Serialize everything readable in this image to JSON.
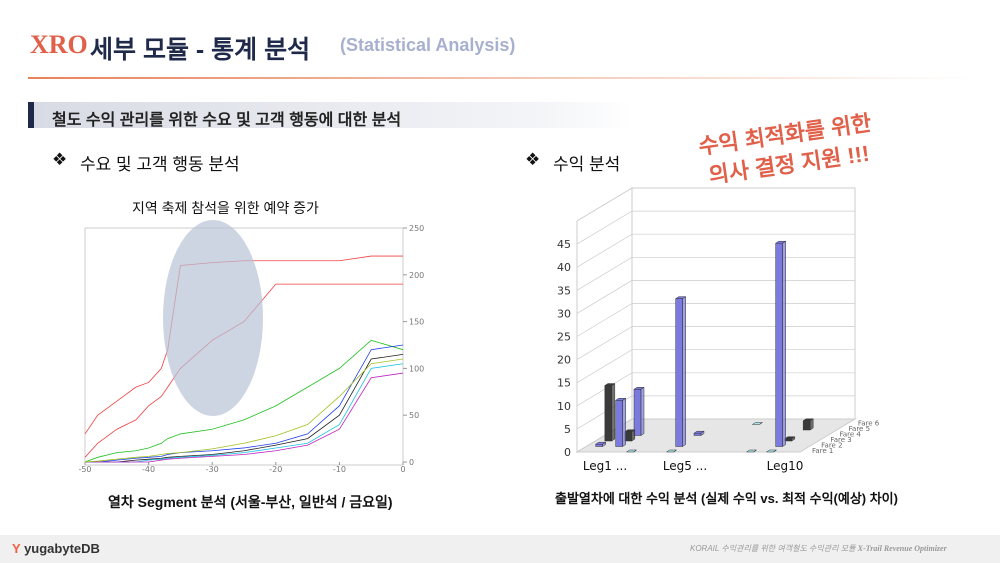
{
  "header": {
    "brand": "XRO",
    "title": "세부 모듈 - 통계 분석",
    "subtitle": "(Statistical Analysis)"
  },
  "section_title": "철도 수익 관리를 위한 수요 및 고객 행동에 대한 분석",
  "left": {
    "heading": "수요 및 고객 행동 분석",
    "annotation": "지역 축제 참석을 위한 예약 증가",
    "caption": "열차 Segment 분석 (서울-부산, 일반석 / 금요일)",
    "chart": {
      "type": "line",
      "xlim": [
        -50,
        0
      ],
      "ylim": [
        0,
        250
      ],
      "xticks": [
        -50,
        -40,
        -30,
        -20,
        -10,
        0
      ],
      "yticks": [
        0,
        50,
        100,
        150,
        200,
        250
      ],
      "x": [
        -50,
        -48,
        -45,
        -42,
        -40,
        -38,
        -37,
        -35,
        -30,
        -25,
        -20,
        -15,
        -10,
        -5,
        0
      ],
      "series": [
        {
          "color": "#f04040",
          "values": [
            30,
            50,
            65,
            80,
            85,
            100,
            120,
            210,
            213,
            215,
            215,
            215,
            215,
            220,
            220
          ]
        },
        {
          "color": "#f04040",
          "values": [
            5,
            20,
            35,
            45,
            60,
            70,
            80,
            100,
            130,
            150,
            190,
            190,
            190,
            190,
            190
          ]
        },
        {
          "color": "#20c020",
          "values": [
            0,
            5,
            10,
            12,
            15,
            20,
            25,
            30,
            35,
            45,
            60,
            80,
            100,
            130,
            120
          ]
        },
        {
          "color": "#2040f0",
          "values": [
            0,
            0,
            2,
            4,
            5,
            6,
            8,
            10,
            12,
            15,
            20,
            30,
            60,
            120,
            125
          ]
        },
        {
          "color": "#202020",
          "values": [
            0,
            0,
            0,
            2,
            3,
            4,
            5,
            6,
            8,
            12,
            18,
            25,
            50,
            110,
            115
          ]
        },
        {
          "color": "#20c0e0",
          "values": [
            0,
            0,
            0,
            0,
            2,
            3,
            4,
            5,
            7,
            10,
            15,
            20,
            40,
            100,
            105
          ]
        },
        {
          "color": "#c020c0",
          "values": [
            0,
            0,
            0,
            0,
            0,
            2,
            3,
            4,
            6,
            8,
            12,
            18,
            35,
            90,
            95
          ]
        },
        {
          "color": "#a0c020",
          "values": [
            0,
            1,
            3,
            5,
            6,
            8,
            9,
            10,
            14,
            20,
            28,
            40,
            70,
            105,
            110
          ]
        }
      ]
    }
  },
  "right": {
    "heading": "수익 분석",
    "callout": "수익 최적화를 위한\n의사 결정 지원 !!!",
    "caption": "출발열차에 대한 수익 분석 (실제 수익 vs. 최적 수익(예상) 차이)",
    "chart": {
      "type": "bar3d",
      "ylim": [
        0,
        50
      ],
      "yticks": [
        0,
        5,
        10,
        15,
        20,
        25,
        30,
        35,
        40,
        45
      ],
      "categories": [
        "Leg1 ...",
        null,
        null,
        null,
        "Leg5 ...",
        null,
        null,
        null,
        null,
        "Leg10"
      ],
      "series": [
        {
          "name": "Fare 1",
          "color": "#a8e4ec",
          "values": [
            null,
            null,
            0,
            null,
            0,
            null,
            null,
            null,
            0,
            0
          ]
        },
        {
          "name": "Fare 2",
          "color": "#7b7bdd",
          "values": [
            0.5,
            10,
            null,
            null,
            32,
            null,
            null,
            null,
            null,
            44
          ]
        },
        {
          "name": "Fare 3",
          "color": "#3a3a3a",
          "values": [
            12,
            2,
            null,
            null,
            null,
            null,
            null,
            null,
            null,
            0.5
          ]
        },
        {
          "name": "Fare 4",
          "color": "#7b7bdd",
          "values": [
            null,
            10,
            null,
            null,
            0.5,
            null,
            null,
            null,
            null,
            null
          ]
        },
        {
          "name": "Fare 5",
          "color": "#3a3a3a",
          "values": [
            null,
            null,
            null,
            null,
            null,
            null,
            null,
            null,
            null,
            2
          ]
        },
        {
          "name": "Fare 6",
          "color": "#a8e4ec",
          "values": [
            null,
            null,
            null,
            null,
            null,
            null,
            0,
            null,
            null,
            null
          ]
        }
      ]
    }
  },
  "footer": {
    "logo": "yugabyteDB",
    "text": "KORAIL 수익관리를 위한 여객철도 수익관리 모듈",
    "product": "X-Trail Revenue Optimizer"
  }
}
